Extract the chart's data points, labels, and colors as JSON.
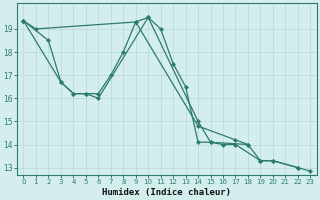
{
  "xlabel": "Humidex (Indice chaleur)",
  "bg_color": "#d4eeee",
  "line_color": "#2d7a6e",
  "grid_color": "#b8d8d8",
  "xlim": [
    -0.5,
    23.5
  ],
  "ylim": [
    12.7,
    20.1
  ],
  "yticks": [
    13,
    14,
    15,
    16,
    17,
    18,
    19
  ],
  "xticks": [
    0,
    1,
    2,
    3,
    4,
    5,
    6,
    7,
    8,
    9,
    10,
    11,
    12,
    13,
    14,
    15,
    16,
    17,
    18,
    19,
    20,
    21,
    22,
    23
  ],
  "series": [
    [
      [
        0,
        19.35
      ],
      [
        1,
        19.0
      ],
      [
        9,
        19.3
      ],
      [
        10,
        19.5
      ],
      [
        11,
        19.0
      ],
      [
        12,
        17.5
      ],
      [
        13,
        16.5
      ],
      [
        14,
        14.1
      ],
      [
        15,
        14.1
      ],
      [
        16,
        14.0
      ],
      [
        17,
        14.0
      ],
      [
        19,
        13.3
      ],
      [
        20,
        13.3
      ],
      [
        22,
        13.0
      ],
      [
        23,
        12.85
      ]
    ],
    [
      [
        0,
        19.35
      ],
      [
        2,
        18.5
      ],
      [
        3,
        16.7
      ],
      [
        4,
        16.2
      ],
      [
        5,
        16.2
      ],
      [
        6,
        16.2
      ],
      [
        7,
        17.0
      ],
      [
        8,
        18.0
      ],
      [
        9,
        19.3
      ],
      [
        14,
        14.8
      ],
      [
        17,
        14.2
      ],
      [
        18,
        14.0
      ],
      [
        19,
        13.3
      ],
      [
        20,
        13.3
      ],
      [
        22,
        13.0
      ]
    ],
    [
      [
        0,
        19.35
      ],
      [
        3,
        16.7
      ],
      [
        4,
        16.2
      ],
      [
        5,
        16.2
      ],
      [
        6,
        16.0
      ],
      [
        10,
        19.5
      ],
      [
        14,
        15.0
      ],
      [
        15,
        14.1
      ],
      [
        18,
        14.0
      ]
    ]
  ]
}
